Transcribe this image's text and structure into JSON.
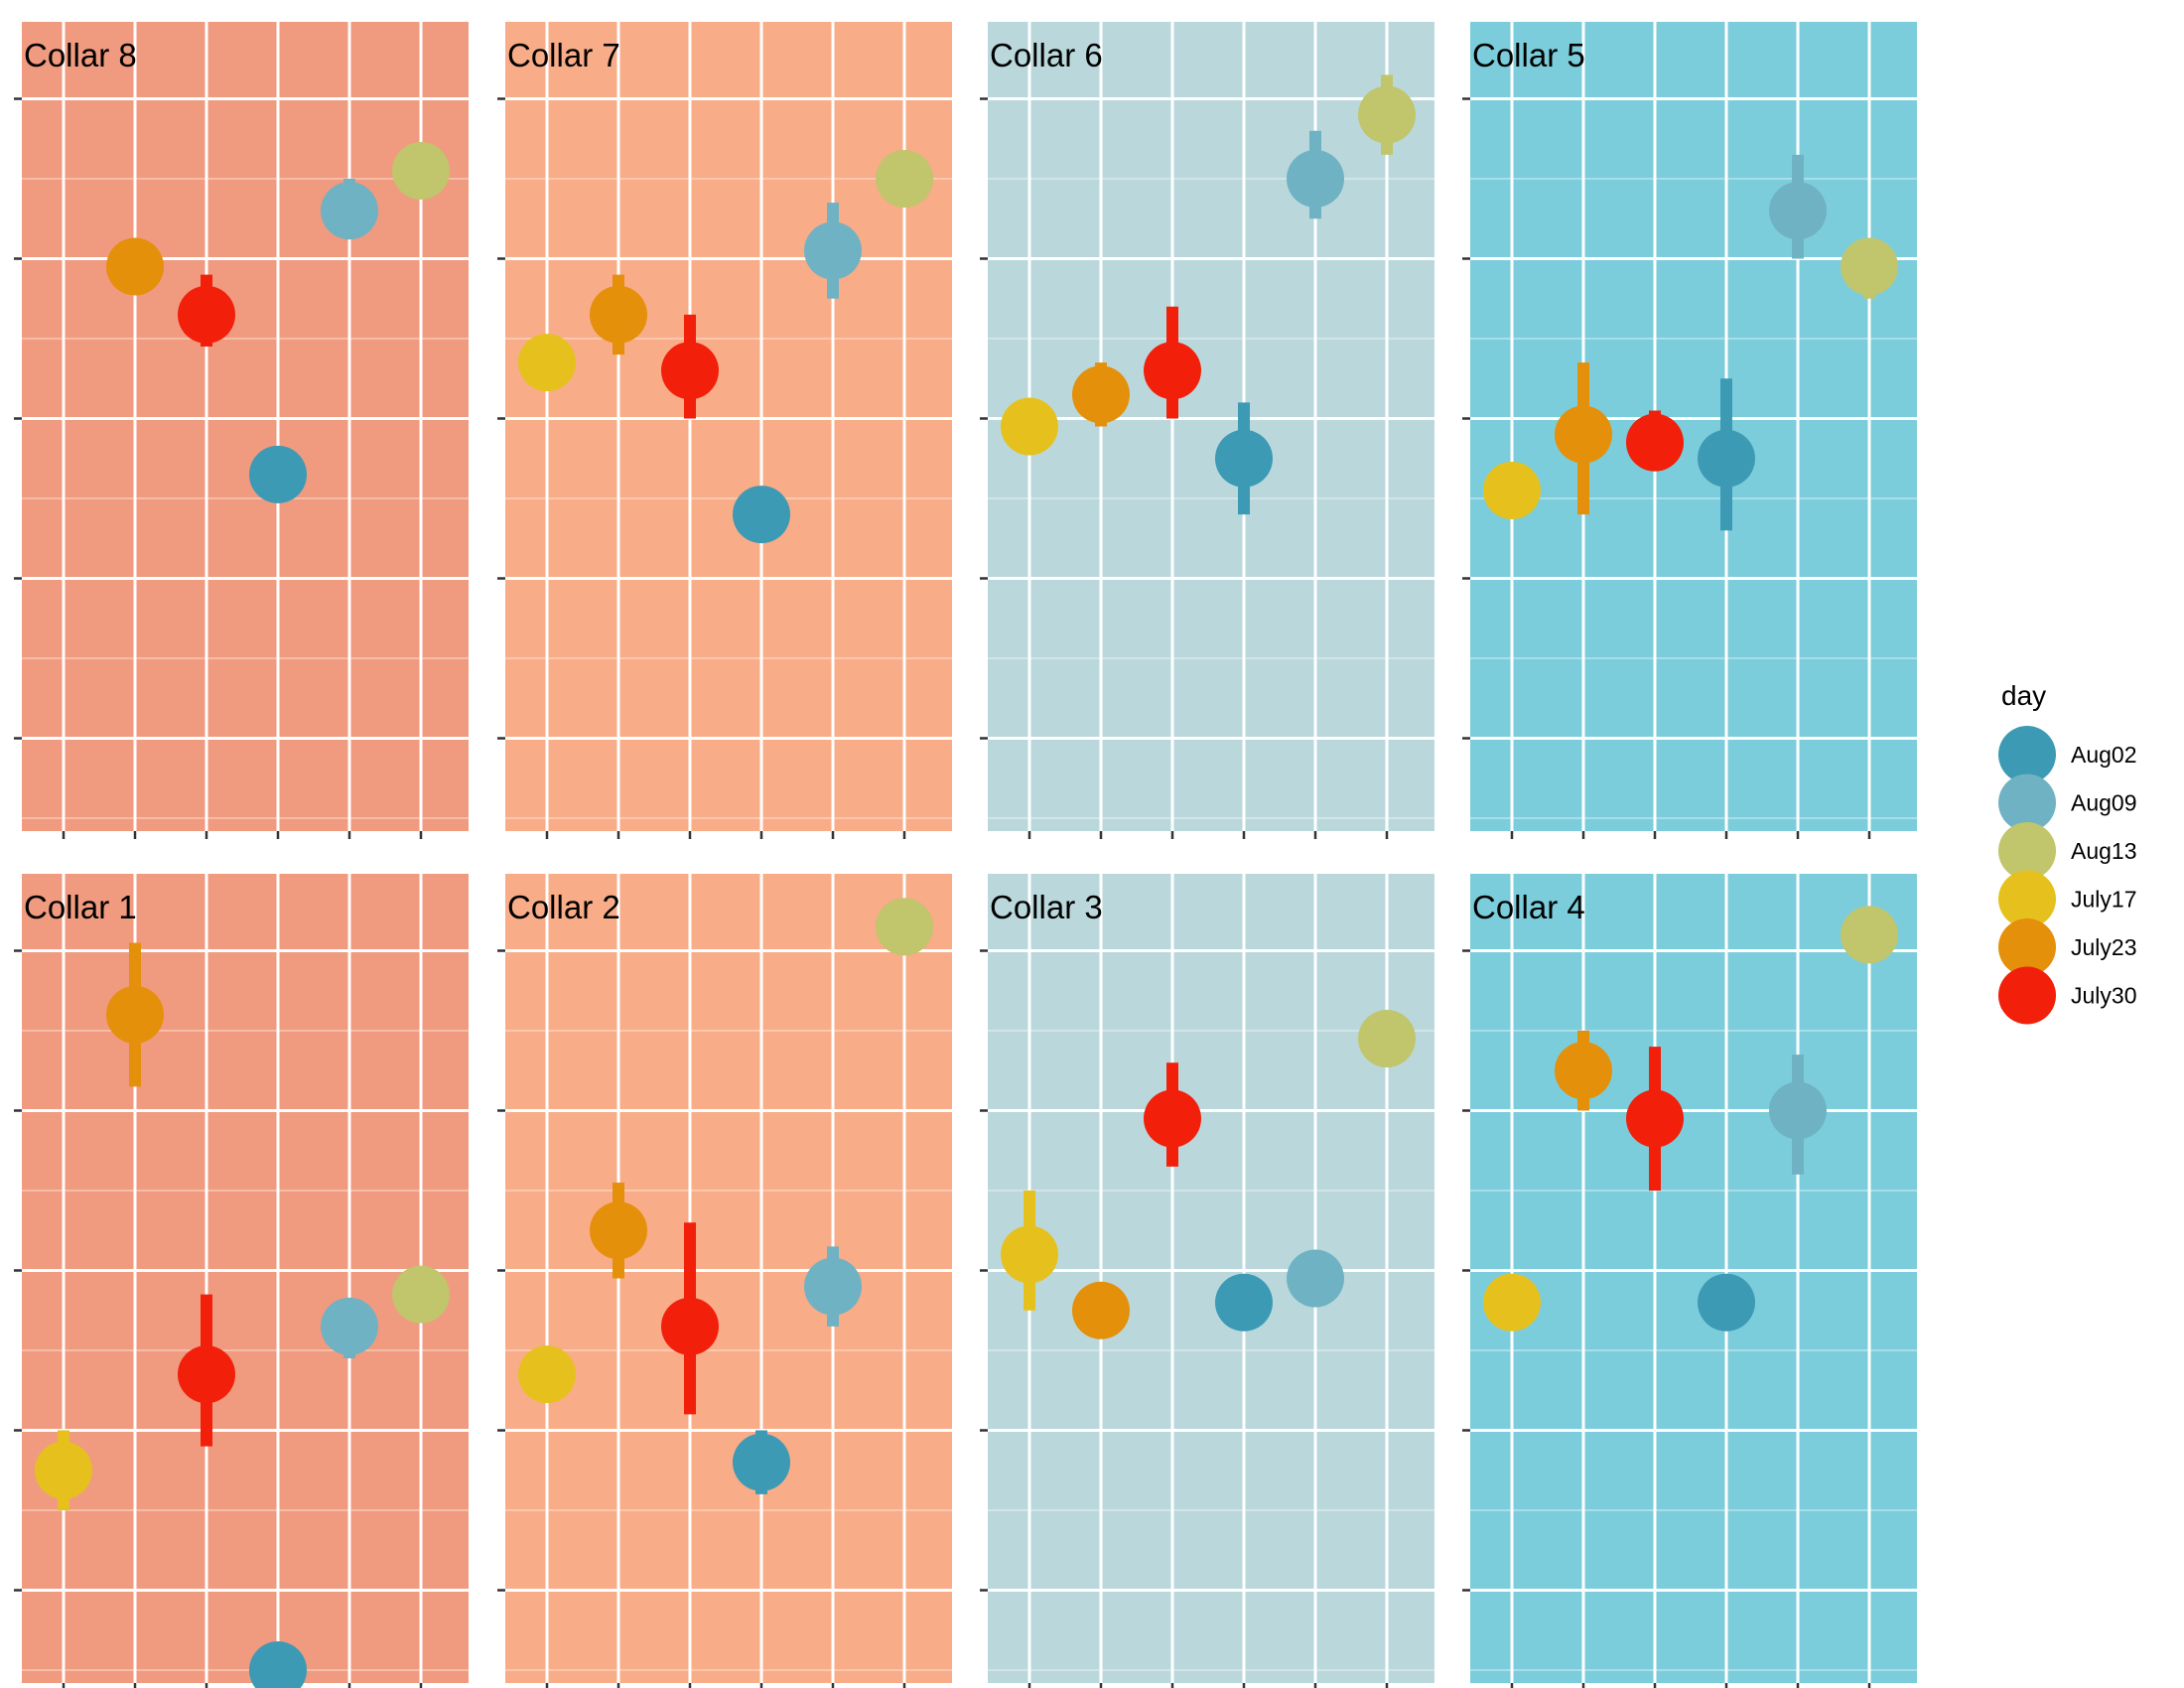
{
  "chart_data": {
    "type": "scatter",
    "title": "",
    "xlabel": "",
    "ylabel": "",
    "x_ticks": 6,
    "ylim": [
      0,
      10
    ],
    "y_tick_values": [
      1,
      3,
      5,
      7,
      9
    ],
    "grid": true,
    "legend": {
      "title": "day",
      "position": "right",
      "entries": [
        {
          "label": "Aug02",
          "color": "#3c9ab4"
        },
        {
          "label": "Aug09",
          "color": "#6fb2c3"
        },
        {
          "label": "Aug13",
          "color": "#c1c56b"
        },
        {
          "label": "July17",
          "color": "#e6c11d"
        },
        {
          "label": "July23",
          "color": "#e4900a"
        },
        {
          "label": "July30",
          "color": "#f21f0a"
        }
      ]
    },
    "panels": [
      {
        "title": "Collar 8",
        "background": "#f09a80",
        "points": [
          {
            "x": 2,
            "day": "July23",
            "y": 6.9,
            "low": 6.9,
            "high": 6.9
          },
          {
            "x": 3,
            "day": "July30",
            "y": 6.3,
            "low": 5.9,
            "high": 6.8
          },
          {
            "x": 4,
            "day": "Aug02",
            "y": 4.3,
            "low": 4.3,
            "high": 4.3
          },
          {
            "x": 5,
            "day": "Aug09",
            "y": 7.6,
            "low": 7.3,
            "high": 8.0
          },
          {
            "x": 6,
            "day": "Aug13",
            "y": 8.1,
            "low": 8.1,
            "high": 8.1
          }
        ]
      },
      {
        "title": "Collar 7",
        "background": "#f8ac88",
        "points": [
          {
            "x": 1,
            "day": "July17",
            "y": 5.7,
            "low": 5.7,
            "high": 5.7
          },
          {
            "x": 2,
            "day": "July23",
            "y": 6.3,
            "low": 5.8,
            "high": 6.8
          },
          {
            "x": 3,
            "day": "July30",
            "y": 5.6,
            "low": 5.0,
            "high": 6.3
          },
          {
            "x": 4,
            "day": "Aug02",
            "y": 3.8,
            "low": 3.8,
            "high": 3.8
          },
          {
            "x": 5,
            "day": "Aug09",
            "y": 7.1,
            "low": 6.5,
            "high": 7.7
          },
          {
            "x": 6,
            "day": "Aug13",
            "y": 8.0,
            "low": 8.0,
            "high": 8.0
          }
        ]
      },
      {
        "title": "Collar 6",
        "background": "#bad8dc",
        "points": [
          {
            "x": 1,
            "day": "July17",
            "y": 4.9,
            "low": 4.9,
            "high": 4.9
          },
          {
            "x": 2,
            "day": "July23",
            "y": 5.3,
            "low": 4.9,
            "high": 5.7
          },
          {
            "x": 3,
            "day": "July30",
            "y": 5.6,
            "low": 5.0,
            "high": 6.4
          },
          {
            "x": 4,
            "day": "Aug02",
            "y": 4.5,
            "low": 3.8,
            "high": 5.2
          },
          {
            "x": 5,
            "day": "Aug09",
            "y": 8.0,
            "low": 7.5,
            "high": 8.6
          },
          {
            "x": 6,
            "day": "Aug13",
            "y": 8.8,
            "low": 8.3,
            "high": 9.3
          }
        ]
      },
      {
        "title": "Collar 5",
        "background": "#7ccddb",
        "points": [
          {
            "x": 1,
            "day": "July17",
            "y": 4.1,
            "low": 4.1,
            "high": 4.1
          },
          {
            "x": 2,
            "day": "July23",
            "y": 4.8,
            "low": 3.8,
            "high": 5.7
          },
          {
            "x": 3,
            "day": "July30",
            "y": 4.7,
            "low": 4.4,
            "high": 5.1
          },
          {
            "x": 4,
            "day": "Aug02",
            "y": 4.5,
            "low": 3.6,
            "high": 5.5
          },
          {
            "x": 5,
            "day": "Aug09",
            "y": 7.6,
            "low": 7.0,
            "high": 8.3
          },
          {
            "x": 6,
            "day": "Aug13",
            "y": 6.9,
            "low": 6.5,
            "high": 7.2
          }
        ]
      },
      {
        "title": "Collar 1",
        "background": "#f09a80",
        "points": [
          {
            "x": 1,
            "day": "July17",
            "y": 2.5,
            "low": 2.0,
            "high": 3.0
          },
          {
            "x": 2,
            "day": "July23",
            "y": 8.2,
            "low": 7.3,
            "high": 9.1
          },
          {
            "x": 3,
            "day": "July30",
            "y": 3.7,
            "low": 2.8,
            "high": 4.7
          },
          {
            "x": 4,
            "day": "Aug02",
            "y": 0.0,
            "low": 0.0,
            "high": 0.0
          },
          {
            "x": 5,
            "day": "Aug09",
            "y": 4.3,
            "low": 3.9,
            "high": 4.6
          },
          {
            "x": 6,
            "day": "Aug13",
            "y": 4.7,
            "low": 4.7,
            "high": 4.7
          }
        ]
      },
      {
        "title": "Collar 2",
        "background": "#f8ac88",
        "points": [
          {
            "x": 1,
            "day": "July17",
            "y": 3.7,
            "low": 3.7,
            "high": 3.7
          },
          {
            "x": 2,
            "day": "July23",
            "y": 5.5,
            "low": 4.9,
            "high": 6.1
          },
          {
            "x": 3,
            "day": "July30",
            "y": 4.3,
            "low": 3.2,
            "high": 5.6
          },
          {
            "x": 4,
            "day": "Aug02",
            "y": 2.6,
            "low": 2.2,
            "high": 3.0
          },
          {
            "x": 5,
            "day": "Aug09",
            "y": 4.8,
            "low": 4.3,
            "high": 5.3
          },
          {
            "x": 6,
            "day": "Aug13",
            "y": 9.3,
            "low": 9.3,
            "high": 9.3
          }
        ]
      },
      {
        "title": "Collar 3",
        "background": "#bad8dc",
        "points": [
          {
            "x": 1,
            "day": "July17",
            "y": 5.2,
            "low": 4.5,
            "high": 6.0
          },
          {
            "x": 2,
            "day": "July23",
            "y": 4.5,
            "low": 4.5,
            "high": 4.5
          },
          {
            "x": 3,
            "day": "July30",
            "y": 6.9,
            "low": 6.3,
            "high": 7.6
          },
          {
            "x": 4,
            "day": "Aug02",
            "y": 4.6,
            "low": 4.6,
            "high": 4.6
          },
          {
            "x": 5,
            "day": "Aug09",
            "y": 4.9,
            "low": 4.9,
            "high": 4.9
          },
          {
            "x": 6,
            "day": "Aug13",
            "y": 7.9,
            "low": 7.6,
            "high": 8.2
          }
        ]
      },
      {
        "title": "Collar 4",
        "background": "#7ccddb",
        "points": [
          {
            "x": 1,
            "day": "July17",
            "y": 4.6,
            "low": 4.6,
            "high": 4.6
          },
          {
            "x": 2,
            "day": "July23",
            "y": 7.5,
            "low": 7.0,
            "high": 8.0
          },
          {
            "x": 3,
            "day": "July30",
            "y": 6.9,
            "low": 6.0,
            "high": 7.8
          },
          {
            "x": 4,
            "day": "Aug02",
            "y": 4.6,
            "low": 4.6,
            "high": 4.6
          },
          {
            "x": 5,
            "day": "Aug09",
            "y": 7.0,
            "low": 6.2,
            "high": 7.7
          },
          {
            "x": 6,
            "day": "Aug13",
            "y": 9.2,
            "low": 9.2,
            "high": 9.2
          }
        ]
      }
    ]
  }
}
